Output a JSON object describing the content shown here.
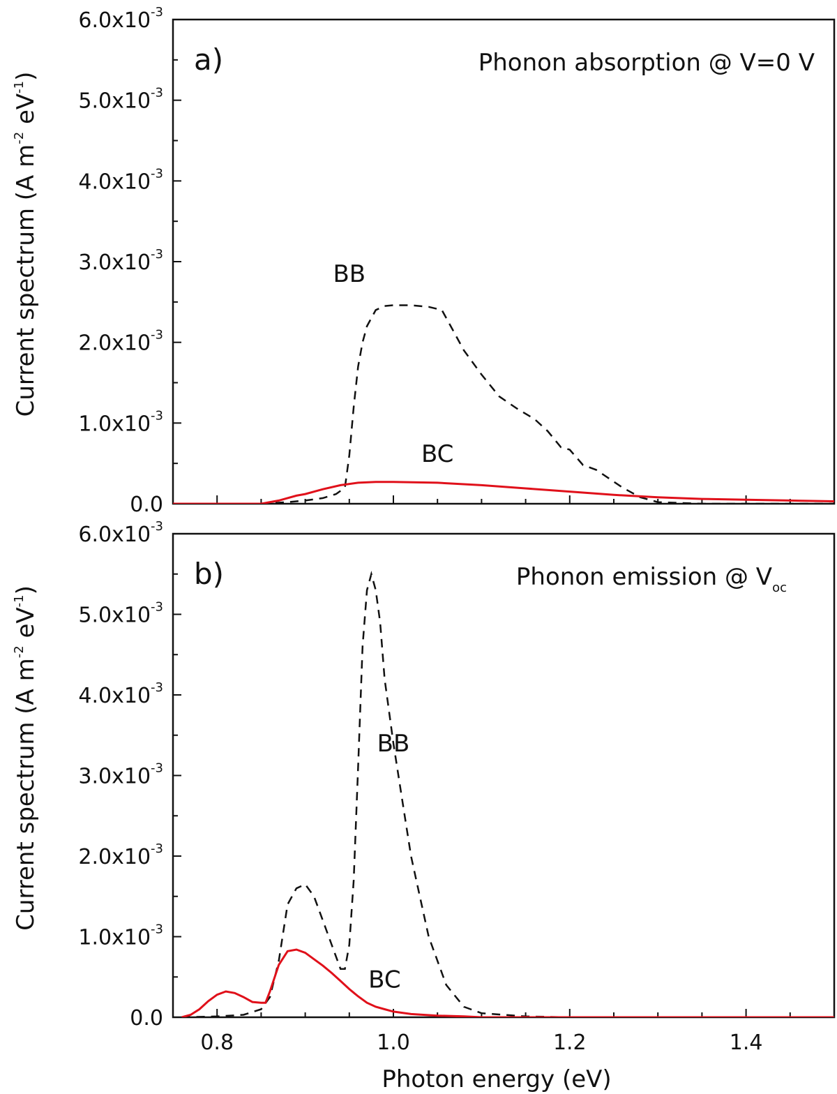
{
  "chart_data": [
    {
      "type": "line",
      "panel_label": "a)",
      "annotation": "Phonon absorption @ V=0 V",
      "xlabel": "",
      "ylabel": "Current spectrum (A m^-2 eV^-1)",
      "xlim": [
        0.75,
        1.5
      ],
      "ylim": [
        0,
        0.006
      ],
      "x_ticks": [
        "0.8",
        "1.0",
        "1.2",
        "1.4"
      ],
      "y_ticks": [
        {
          "v": 0,
          "mant": "0.0",
          "exp": ""
        },
        {
          "v": 0.001,
          "mant": "1.0x10",
          "exp": "-3"
        },
        {
          "v": 0.002,
          "mant": "2.0x10",
          "exp": "-3"
        },
        {
          "v": 0.003,
          "mant": "3.0x10",
          "exp": "-3"
        },
        {
          "v": 0.004,
          "mant": "4.0x10",
          "exp": "-3"
        },
        {
          "v": 0.005,
          "mant": "5.0x10",
          "exp": "-3"
        },
        {
          "v": 0.006,
          "mant": "6.0x10",
          "exp": "-3"
        }
      ],
      "series": [
        {
          "name": "BB",
          "color": "#111111",
          "style": "dashed",
          "label_at": [
            0.95,
            0.00275
          ],
          "x": [
            0.75,
            0.85,
            0.88,
            0.9,
            0.92,
            0.935,
            0.945,
            0.95,
            0.955,
            0.96,
            0.965,
            0.97,
            0.98,
            0.99,
            1.0,
            1.02,
            1.04,
            1.055,
            1.065,
            1.08,
            1.1,
            1.12,
            1.14,
            1.16,
            1.175,
            1.19,
            1.2,
            1.215,
            1.23,
            1.26,
            1.28,
            1.3,
            1.35,
            1.4,
            1.5
          ],
          "y": [
            0,
            0,
            2e-05,
            4e-05,
            7e-05,
            0.00012,
            0.0002,
            0.0006,
            0.0012,
            0.0017,
            0.002,
            0.0022,
            0.0024,
            0.00245,
            0.00246,
            0.00246,
            0.00244,
            0.0024,
            0.0022,
            0.0019,
            0.0016,
            0.00133,
            0.00118,
            0.00105,
            0.0009,
            0.0007,
            0.00067,
            0.00048,
            0.00042,
            0.0002,
            8e-05,
            2e-05,
            0,
            0,
            0
          ]
        },
        {
          "name": "BC",
          "color": "#e0101a",
          "style": "solid",
          "label_at": [
            1.05,
            0.00052
          ],
          "x": [
            0.75,
            0.85,
            0.87,
            0.89,
            0.9,
            0.92,
            0.94,
            0.96,
            0.98,
            1.0,
            1.05,
            1.1,
            1.15,
            1.2,
            1.25,
            1.3,
            1.35,
            1.4,
            1.45,
            1.5
          ],
          "y": [
            0,
            0,
            4e-05,
            0.0001,
            0.00012,
            0.00018,
            0.00023,
            0.00026,
            0.00027,
            0.00027,
            0.00026,
            0.00023,
            0.00019,
            0.00015,
            0.00011,
            8e-05,
            6e-05,
            5e-05,
            4e-05,
            3e-05
          ]
        }
      ]
    },
    {
      "type": "line",
      "panel_label": "b)",
      "annotation": "Phonon emission @ V",
      "annotation_sub": "oc",
      "xlabel": "Photon energy (eV)",
      "ylabel": "Current spectrum (A m^-2 eV^-1)",
      "xlim": [
        0.75,
        1.5
      ],
      "ylim": [
        0,
        0.006
      ],
      "x_ticks": [
        "0.8",
        "1.0",
        "1.2",
        "1.4"
      ],
      "y_ticks": [
        {
          "v": 0,
          "mant": "0.0",
          "exp": ""
        },
        {
          "v": 0.001,
          "mant": "1.0x10",
          "exp": "-3"
        },
        {
          "v": 0.002,
          "mant": "2.0x10",
          "exp": "-3"
        },
        {
          "v": 0.003,
          "mant": "3.0x10",
          "exp": "-3"
        },
        {
          "v": 0.004,
          "mant": "4.0x10",
          "exp": "-3"
        },
        {
          "v": 0.005,
          "mant": "5.0x10",
          "exp": "-3"
        },
        {
          "v": 0.006,
          "mant": "6.0x10",
          "exp": "-3"
        }
      ],
      "series": [
        {
          "name": "BB",
          "color": "#111111",
          "style": "dashed",
          "label_at": [
            1.0,
            0.0033
          ],
          "x": [
            0.76,
            0.8,
            0.83,
            0.85,
            0.86,
            0.87,
            0.875,
            0.88,
            0.89,
            0.9,
            0.91,
            0.92,
            0.93,
            0.94,
            0.945,
            0.95,
            0.955,
            0.96,
            0.965,
            0.97,
            0.975,
            0.98,
            0.985,
            0.99,
            1.0,
            1.01,
            1.02,
            1.03,
            1.04,
            1.06,
            1.08,
            1.1,
            1.15,
            1.2,
            1.5
          ],
          "y": [
            0,
            1e-05,
            3e-05,
            0.0001,
            0.00025,
            0.0007,
            0.00105,
            0.0014,
            0.0016,
            0.00165,
            0.0015,
            0.0012,
            0.0009,
            0.0006,
            0.0006,
            0.0009,
            0.0017,
            0.0031,
            0.0046,
            0.0053,
            0.0055,
            0.0053,
            0.0049,
            0.0042,
            0.0034,
            0.0027,
            0.002,
            0.0015,
            0.001,
            0.0004,
            0.00013,
            5e-05,
            1e-05,
            0,
            0
          ]
        },
        {
          "name": "BC",
          "color": "#e0101a",
          "style": "solid",
          "label_at": [
            0.99,
            0.00037
          ],
          "x": [
            0.76,
            0.77,
            0.78,
            0.79,
            0.8,
            0.81,
            0.82,
            0.83,
            0.84,
            0.85,
            0.855,
            0.86,
            0.87,
            0.88,
            0.89,
            0.9,
            0.91,
            0.92,
            0.93,
            0.94,
            0.95,
            0.96,
            0.97,
            0.98,
            0.99,
            1.0,
            1.02,
            1.05,
            1.08,
            1.1,
            1.15,
            1.5
          ],
          "y": [
            0,
            3e-05,
            0.0001,
            0.0002,
            0.00028,
            0.00032,
            0.0003,
            0.00025,
            0.00019,
            0.00018,
            0.00018,
            0.00032,
            0.00065,
            0.00082,
            0.00084,
            0.0008,
            0.00072,
            0.00064,
            0.00055,
            0.00045,
            0.00035,
            0.00026,
            0.00018,
            0.00013,
            0.0001,
            7e-05,
            4e-05,
            2e-05,
            1e-05,
            0,
            0,
            0
          ]
        }
      ]
    }
  ]
}
